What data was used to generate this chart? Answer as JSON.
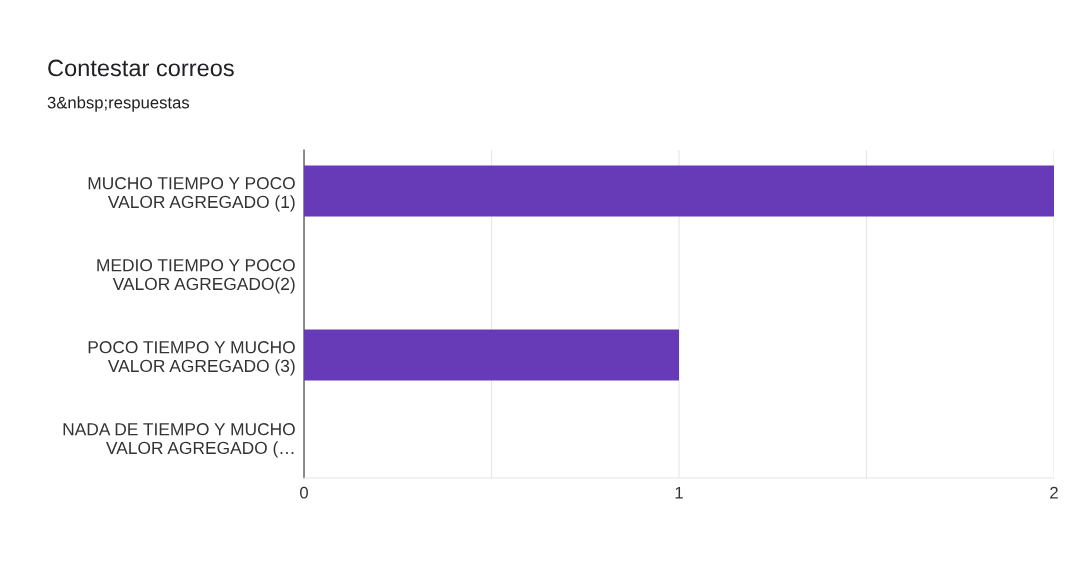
{
  "chart_data": {
    "type": "bar",
    "orientation": "horizontal",
    "title": "Contestar correos",
    "subtitle": "3&nbsp;respuestas",
    "categories": [
      "MUCHO TIEMPO Y POCO\nVALOR AGREGADO (1)",
      "MEDIO TIEMPO Y POCO\nVALOR AGREGADO(2)",
      "POCO TIEMPO Y MUCHO\nVALOR AGREGADO (3)",
      "NADA DE TIEMPO Y MUCHO\nVALOR AGREGADO (…"
    ],
    "values": [
      2,
      0,
      1,
      0
    ],
    "color": "#673ab7",
    "xlim": [
      0,
      2
    ],
    "xticks": [
      0,
      {
        "value": 0.5,
        "label": null
      },
      1,
      {
        "value": 1.5,
        "label": null
      },
      2
    ],
    "grid": "x"
  }
}
